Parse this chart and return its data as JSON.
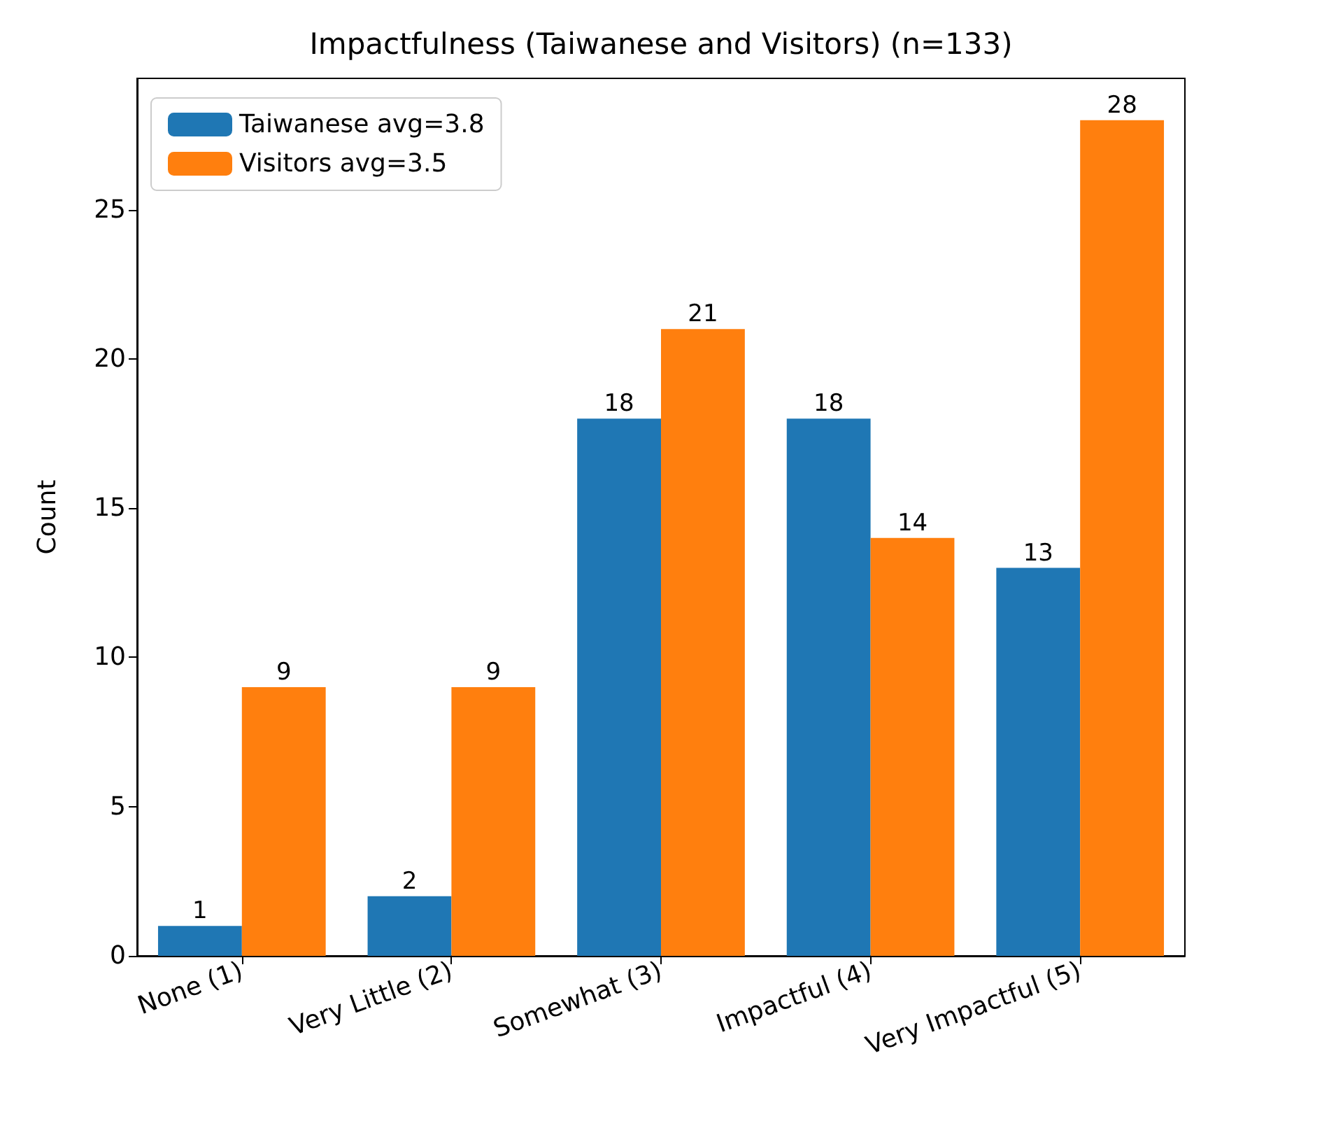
{
  "chart_data": {
    "type": "bar",
    "title": "Impactfulness (Taiwanese and Visitors) (n=133)",
    "ylabel": "Count",
    "categories": [
      "None (1)",
      "Very Little (2)",
      "Somewhat (3)",
      "Impactful (4)",
      "Very Impactful (5)"
    ],
    "series": [
      {
        "name": "Taiwanese avg=3.8",
        "color": "#1f77b4",
        "values": [
          1,
          2,
          18,
          18,
          13
        ]
      },
      {
        "name": "Visitors avg=3.5",
        "color": "#ff7f0e",
        "values": [
          9,
          9,
          21,
          14,
          28
        ]
      }
    ],
    "ylim": [
      0,
      29.4
    ],
    "yticks": [
      0,
      5,
      10,
      15,
      20,
      25
    ],
    "data_labels": true,
    "legend": "top left",
    "grid": false
  }
}
